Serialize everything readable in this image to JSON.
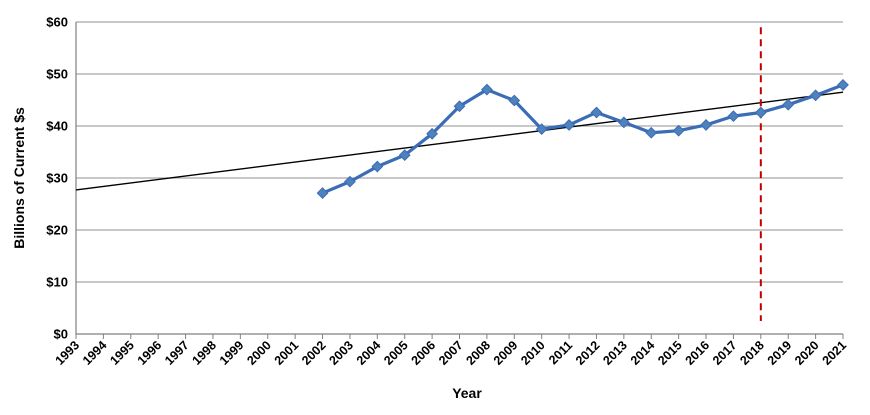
{
  "chart_data": {
    "type": "line",
    "title": "",
    "xlabel": "Year",
    "ylabel": "Billions of Current $s",
    "ylim": [
      0,
      60
    ],
    "xlim": [
      1993,
      2021
    ],
    "grid": "horizontal",
    "legend": "none",
    "y_ticks": [
      "$0",
      "$10",
      "$20",
      "$30",
      "$40",
      "$50",
      "$60"
    ],
    "y_tick_values": [
      0,
      10,
      20,
      30,
      40,
      50,
      60
    ],
    "x_ticks": [
      "1993",
      "1994",
      "1995",
      "1996",
      "1997",
      "1998",
      "1999",
      "2000",
      "2001",
      "2002",
      "2003",
      "2004",
      "2005",
      "2006",
      "2007",
      "2008",
      "2009",
      "2010",
      "2011",
      "2012",
      "2013",
      "2014",
      "2015",
      "2016",
      "2017",
      "2018",
      "2019",
      "2020",
      "2021"
    ],
    "series": [
      {
        "x": [
          2002,
          2003,
          2004,
          2005,
          2006,
          2007,
          2008,
          2009,
          2010,
          2011,
          2012,
          2013,
          2014,
          2015,
          2016,
          2017,
          2018,
          2019,
          2020,
          2021
        ],
        "values": [
          27.1,
          29.3,
          32.2,
          34.4,
          38.5,
          43.8,
          47.0,
          44.9,
          39.4,
          40.2,
          42.6,
          40.7,
          38.7,
          39.1,
          40.2,
          41.9,
          42.6,
          44.1,
          45.9,
          47.9
        ],
        "color": "#3a6db5",
        "marker": "diamond"
      }
    ],
    "trendline": {
      "x": [
        1993,
        2021
      ],
      "values": [
        27.7,
        46.5
      ],
      "color": "#000000"
    },
    "reference_line": {
      "x": 2018,
      "ymin": 2.5,
      "ymax": 59,
      "color": "#c00000",
      "style": "dashed"
    },
    "colors": {
      "series": "#3a6db5",
      "marker_fill": "#4f81bd",
      "gridline": "#a6a6a6",
      "axis": "#808080",
      "trendline": "#000000",
      "reference": "#c00000"
    }
  }
}
